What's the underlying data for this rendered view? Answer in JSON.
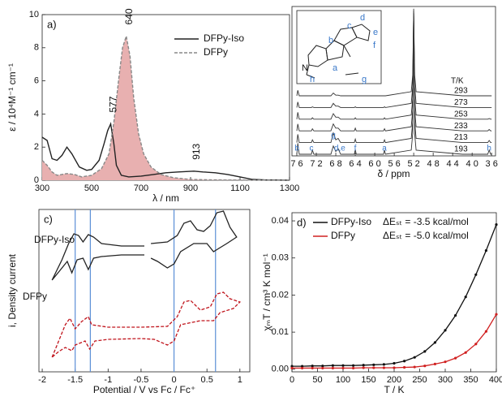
{
  "chart_data": [
    {
      "type": "line",
      "label": "a)",
      "xlabel": "λ / nm",
      "ylabel": "ε / 10⁴M⁻¹ cm⁻¹",
      "xlim": [
        300,
        1300
      ],
      "ylim": [
        0,
        10
      ],
      "xticks": [
        300,
        500,
        700,
        900,
        1100,
        1300
      ],
      "yticks": [
        0,
        2,
        4,
        6,
        8,
        10
      ],
      "legend": "upper right",
      "series": [
        {
          "name": "DFPy-Iso",
          "color": "#222222",
          "x": [
            300,
            320,
            340,
            360,
            380,
            400,
            420,
            450,
            480,
            500,
            530,
            550,
            565,
            577,
            590,
            600,
            620,
            650,
            700,
            750,
            800,
            850,
            913,
            950,
            1000,
            1050,
            1100,
            1150,
            1200,
            1300
          ],
          "values": [
            2.6,
            2.4,
            1.3,
            1.2,
            1.5,
            2.0,
            1.6,
            0.8,
            0.6,
            0.65,
            1.2,
            2.2,
            3.0,
            3.4,
            2.2,
            0.9,
            0.3,
            0.2,
            0.25,
            0.35,
            0.45,
            0.5,
            0.55,
            0.5,
            0.45,
            0.35,
            0.2,
            0.05,
            0.02,
            0
          ]
        },
        {
          "name": "DFPy",
          "color": "#888888",
          "dashed": true,
          "fill": "#e8b0b0",
          "x": [
            300,
            320,
            340,
            360,
            400,
            430,
            460,
            500,
            540,
            570,
            590,
            610,
            625,
            640,
            655,
            670,
            690,
            710,
            740,
            780,
            830,
            900,
            1000,
            1300
          ],
          "values": [
            1.2,
            0.9,
            0.5,
            0.3,
            0.4,
            0.35,
            0.2,
            0.3,
            0.7,
            1.6,
            3.5,
            6.2,
            8.0,
            8.7,
            7.5,
            5.0,
            2.8,
            1.6,
            0.8,
            0.35,
            0.15,
            0.05,
            0.02,
            0
          ]
        }
      ],
      "annotations": [
        {
          "text": "577",
          "x": 577,
          "y": 3.4
        },
        {
          "text": "640",
          "x": 640,
          "y": 8.7
        },
        {
          "text": "913",
          "x": 913,
          "y": 0.55
        }
      ]
    },
    {
      "type": "spectra",
      "label": "b)",
      "xlabel": "δ / ppm",
      "series_title": "T/K",
      "xlim": [
        7.7,
        3.52
      ],
      "ylim": [
        0,
        10
      ],
      "xticks": [
        {
          "value": 7.6,
          "label": "7 6"
        },
        {
          "value": 7.2,
          "label": "7 2"
        },
        {
          "value": 6.8,
          "label": "6 8"
        },
        {
          "value": 6.4,
          "label": "6 4"
        },
        {
          "value": 6.0,
          "label": "6 0"
        },
        {
          "value": 5.6,
          "label": "5 6"
        },
        {
          "value": 5.2,
          "label": "5 2"
        },
        {
          "value": 4.8,
          "label": "4 8"
        },
        {
          "value": 4.4,
          "label": "4 4"
        },
        {
          "value": 4.0,
          "label": "4 0"
        },
        {
          "value": 3.6,
          "label": "3 6"
        }
      ],
      "x": [
        7.6,
        7.58,
        7.55,
        7.3,
        7.28,
        7.25,
        6.9,
        6.85,
        6.8,
        6.75,
        6.7,
        6.42,
        6.4,
        6.38,
        5.82,
        5.8,
        5.78,
        5.25,
        5.22,
        5.2,
        5.18,
        5.15,
        4.2,
        3.68,
        3.65,
        3.62,
        3.6
      ],
      "series": [
        {
          "name": "293",
          "color": "#333333",
          "values": [
            0,
            0.4,
            0,
            0,
            0,
            0,
            0,
            0.2,
            0.05,
            0.05,
            0,
            0,
            0,
            0,
            0,
            0,
            0,
            0.3,
            1.5,
            6,
            1.5,
            0.3,
            0,
            0,
            0,
            0,
            0
          ]
        },
        {
          "name": "273",
          "color": "#333333",
          "values": [
            0,
            0.4,
            0,
            0,
            0.05,
            0,
            0,
            0.3,
            0.1,
            0.1,
            0,
            0,
            0.05,
            0,
            0,
            0.05,
            0,
            0.3,
            1.5,
            7,
            1.5,
            0.3,
            0,
            0,
            0,
            0,
            0
          ]
        },
        {
          "name": "253",
          "color": "#333333",
          "values": [
            0,
            0.5,
            0,
            0,
            0.1,
            0,
            0,
            0.4,
            0.15,
            0.15,
            0,
            0,
            0.1,
            0,
            0,
            0.1,
            0,
            0.3,
            1.5,
            8,
            1.5,
            0.3,
            0,
            0,
            0.05,
            0,
            0
          ]
        },
        {
          "name": "233",
          "color": "#333333",
          "values": [
            0,
            0.5,
            0,
            0,
            0.15,
            0,
            0,
            0.5,
            0.2,
            0.2,
            0,
            0,
            0.2,
            0,
            0,
            0.15,
            0,
            0.3,
            1.5,
            8.5,
            1.5,
            0.3,
            0,
            0,
            0.1,
            0,
            0
          ]
        },
        {
          "name": "213",
          "color": "#333333",
          "values": [
            0,
            0.6,
            0,
            0,
            0.2,
            0,
            0,
            0.7,
            0.2,
            0.3,
            0,
            0,
            0.25,
            0,
            0,
            0.2,
            0,
            0.3,
            1.5,
            9,
            1.5,
            0.3,
            0,
            0,
            0.15,
            0,
            0
          ]
        },
        {
          "name": "193",
          "color": "#333333",
          "values": [
            0,
            0.8,
            0,
            0,
            0.3,
            0,
            0,
            0.6,
            0.2,
            0.4,
            0,
            0,
            0.35,
            0,
            0,
            0.3,
            0,
            0.3,
            1.5,
            10,
            1.5,
            0.3,
            0,
            0,
            0.3,
            0,
            0
          ]
        }
      ],
      "peak_labels": [
        {
          "text": "b",
          "x": 7.6
        },
        {
          "text": "c",
          "x": 7.3
        },
        {
          "text": "g",
          "x": 6.85
        },
        {
          "text": "d,e",
          "x": 6.72
        },
        {
          "text": "f",
          "x": 6.4
        },
        {
          "text": "a",
          "x": 5.8
        },
        {
          "text": "h",
          "x": 3.65
        }
      ],
      "peak_label_color": "#3a78c9",
      "inset_labels": [
        "b",
        "c",
        "d",
        "e",
        "f",
        "a",
        "h",
        "g"
      ],
      "inset_atom": "N"
    },
    {
      "type": "voltammogram",
      "label": "c)",
      "xlabel": "Potential / V vs Fc / Fc⁺",
      "ylabel": "i, Density current",
      "xlim": [
        -2.05,
        1.15
      ],
      "ylim": [
        -1,
        1
      ],
      "xticks": [
        -2,
        -1.5,
        -1,
        -0.5,
        0,
        0.5,
        1
      ],
      "vlines": [
        -1.5,
        -1.27,
        0,
        0.63
      ],
      "vline_color": "#5b8fd6",
      "series": [
        {
          "name": "DFPy-Iso",
          "color": "#222222",
          "x": [
            -0.45,
            -0.8,
            -1.1,
            -1.22,
            -1.3,
            -1.38,
            -1.45,
            -1.52,
            -1.6,
            -1.7,
            -1.85,
            -1.75,
            -1.62,
            -1.55,
            -1.47,
            -1.38,
            -1.3,
            -1.22,
            -1.1,
            -0.8,
            -0.45,
            null,
            -0.35,
            -0.1,
            0.05,
            0.15,
            0.25,
            0.35,
            0.45,
            0.55,
            0.65,
            0.75,
            0.85,
            0.95,
            0.8,
            0.7,
            0.6,
            0.5,
            0.3,
            0.1,
            0.0,
            -0.1,
            -0.25,
            -0.35
          ],
          "values": [
            0.55,
            0.55,
            0.58,
            0.66,
            0.69,
            0.6,
            0.68,
            0.7,
            0.58,
            0.38,
            0.13,
            0.23,
            0.36,
            0.22,
            0.38,
            0.4,
            0.26,
            0.4,
            0.42,
            0.44,
            0.44,
            null,
            0.58,
            0.6,
            0.68,
            0.83,
            0.86,
            0.75,
            0.73,
            0.8,
            0.96,
            0.98,
            0.78,
            0.66,
            0.58,
            0.53,
            0.48,
            0.58,
            0.58,
            0.48,
            0.33,
            0.28,
            0.36,
            0.4
          ]
        },
        {
          "name": "DFPy",
          "color": "#c0141c",
          "dashed": true,
          "x": [
            -1.85,
            -1.75,
            -1.65,
            -1.58,
            -1.5,
            -1.4,
            -1.3,
            -1.25,
            -1.0,
            -0.5,
            -0.1,
            0.05,
            0.15,
            0.25,
            0.4,
            0.55,
            0.65,
            0.75,
            0.85,
            1.0,
            0.9,
            0.7,
            0.6,
            0.4,
            0.1,
            0.0,
            -0.1,
            -0.3,
            -0.5,
            -1.0,
            -1.2,
            -1.28,
            -1.35,
            -1.5,
            -1.55,
            -1.65,
            -1.75,
            -1.85
          ],
          "values": [
            -0.82,
            -0.62,
            -0.42,
            -0.34,
            -0.47,
            -0.38,
            -0.32,
            -0.42,
            -0.45,
            -0.45,
            -0.44,
            -0.32,
            -0.14,
            -0.12,
            -0.24,
            -0.2,
            -0.04,
            -0.02,
            -0.1,
            -0.14,
            -0.22,
            -0.27,
            -0.37,
            -0.37,
            -0.42,
            -0.62,
            -0.67,
            -0.6,
            -0.59,
            -0.6,
            -0.62,
            -0.72,
            -0.62,
            -0.67,
            -0.74,
            -0.7,
            -0.75,
            -0.82
          ]
        }
      ]
    },
    {
      "type": "scatter",
      "label": "d)",
      "xlabel": "T / K",
      "ylabel": "χₘT / cm³ K mol⁻¹",
      "xlim": [
        0,
        400
      ],
      "ylim": [
        -0.0007,
        0.0422
      ],
      "xticks": [
        0,
        50,
        100,
        150,
        200,
        250,
        300,
        350,
        400
      ],
      "yticks": [
        {
          "value": 0,
          "label": "0.00"
        },
        {
          "value": 0.01,
          "label": "0.01"
        },
        {
          "value": 0.02,
          "label": "0.02"
        },
        {
          "value": 0.03,
          "label": "0.03"
        },
        {
          "value": 0.04,
          "label": "0.04"
        }
      ],
      "legend": "upper left",
      "x": [
        0,
        20,
        40,
        60,
        80,
        100,
        120,
        140,
        160,
        180,
        200,
        220,
        240,
        260,
        280,
        300,
        320,
        340,
        360,
        380,
        400
      ],
      "series": [
        {
          "name": "DFPy-Iso",
          "color": "#111111",
          "note": "ΔEₛₜ = -3.5 kcal/mol",
          "values": [
            0.0008,
            0.0008,
            0.0009,
            0.0009,
            0.001,
            0.001,
            0.001,
            0.0011,
            0.0012,
            0.0013,
            0.0016,
            0.0022,
            0.0032,
            0.0048,
            0.0072,
            0.0105,
            0.0145,
            0.0195,
            0.0255,
            0.032,
            0.039
          ]
        },
        {
          "name": "DFPy",
          "color": "#d02020",
          "note": "ΔEₛₜ = -5.0 kcal/mol",
          "values": [
            0.0003,
            0.0003,
            0.0003,
            0.0003,
            0.0003,
            0.0003,
            0.0003,
            0.0004,
            0.0004,
            0.0004,
            0.0004,
            0.0005,
            0.0006,
            0.0009,
            0.0014,
            0.002,
            0.003,
            0.0045,
            0.0068,
            0.0102,
            0.0148
          ]
        }
      ]
    }
  ]
}
